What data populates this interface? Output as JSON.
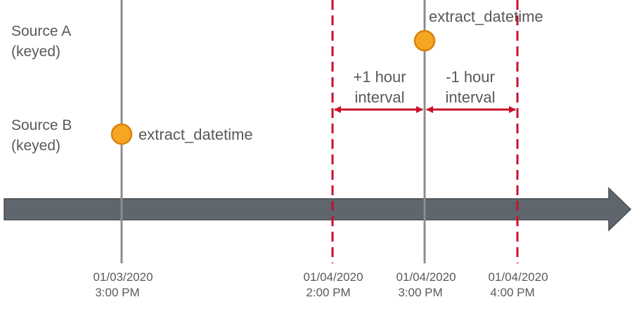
{
  "sources": [
    {
      "name": "Source A",
      "qualifier": "(keyed)"
    },
    {
      "name": "Source B",
      "qualifier": "(keyed)"
    }
  ],
  "events": [
    {
      "source": "Source A",
      "label": "extract_datetime",
      "time": "01/04/2020 3:00 PM"
    },
    {
      "source": "Source B",
      "label": "extract_datetime",
      "time": "01/03/2020 3:00 PM"
    }
  ],
  "intervals": [
    {
      "line1": "+1 hour",
      "line2": "interval"
    },
    {
      "line1": "-1 hour",
      "line2": "interval"
    }
  ],
  "ticks": [
    {
      "date": "01/03/2020",
      "time": "3:00 PM",
      "style": "solid"
    },
    {
      "date": "01/04/2020",
      "time": "2:00 PM",
      "style": "dashed"
    },
    {
      "date": "01/04/2020",
      "time": "3:00 PM",
      "style": "solid"
    },
    {
      "date": "01/04/2020",
      "time": "4:00 PM",
      "style": "dashed"
    }
  ],
  "colors": {
    "axis": "#5f666d",
    "axis_stroke": "#454b50",
    "solid_line": "#8c8c8c",
    "dashed_line": "#c8102e",
    "marker_fill": "#f5a623",
    "marker_stroke": "#d9820f",
    "text": "#595959"
  }
}
